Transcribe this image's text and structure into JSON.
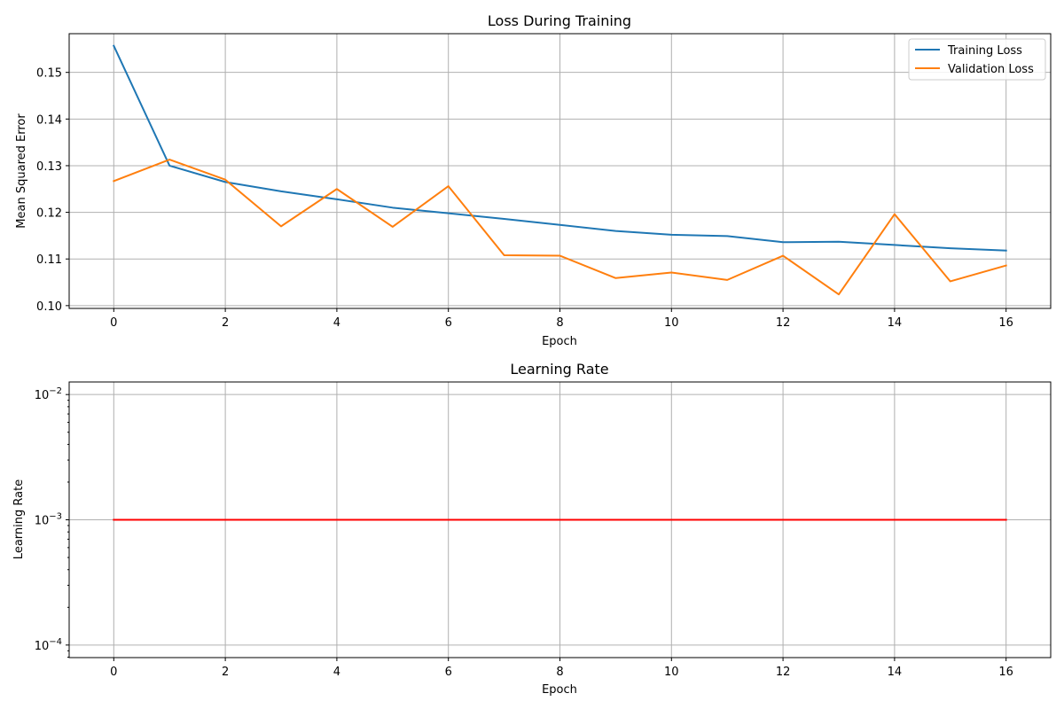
{
  "chart_data": [
    {
      "type": "line",
      "title": "Loss During Training",
      "xlabel": "Epoch",
      "ylabel": "Mean Squared Error",
      "xlim": [
        -0.8,
        16.8
      ],
      "ylim": [
        0.0994,
        0.1583
      ],
      "xticks": [
        0,
        2,
        4,
        6,
        8,
        10,
        12,
        14,
        16
      ],
      "yticks": [
        0.1,
        0.11,
        0.12,
        0.13,
        0.14,
        0.15
      ],
      "ytick_labels": [
        "0.10",
        "0.11",
        "0.12",
        "0.13",
        "0.14",
        "0.15"
      ],
      "grid": true,
      "legend": "top-right",
      "x": [
        0,
        1,
        2,
        3,
        4,
        5,
        6,
        7,
        8,
        9,
        10,
        11,
        12,
        13,
        14,
        15,
        16
      ],
      "series": [
        {
          "name": "Training Loss",
          "color": "#1f77b4",
          "values": [
            0.1557,
            0.13,
            0.1265,
            0.1245,
            0.1228,
            0.121,
            0.1198,
            0.1186,
            0.1173,
            0.116,
            0.1152,
            0.1149,
            0.1136,
            0.1137,
            0.113,
            0.1123,
            0.1118
          ]
        },
        {
          "name": "Validation Loss",
          "color": "#ff7f0e",
          "values": [
            0.1267,
            0.1313,
            0.127,
            0.117,
            0.125,
            0.1169,
            0.1256,
            0.1108,
            0.1107,
            0.1059,
            0.1071,
            0.1055,
            0.1107,
            0.1024,
            0.1196,
            0.1052,
            0.1086
          ]
        }
      ]
    },
    {
      "type": "line",
      "title": "Learning Rate",
      "xlabel": "Epoch",
      "ylabel": "Learning Rate",
      "yscale": "log",
      "xlim": [
        -0.8,
        16.8
      ],
      "ylim": [
        7.94e-05,
        0.0126
      ],
      "xticks": [
        0,
        2,
        4,
        6,
        8,
        10,
        12,
        14,
        16
      ],
      "yticks": [
        0.0001,
        0.001,
        0.01
      ],
      "ytick_labels": [
        {
          "base": "10",
          "exp": "−4"
        },
        {
          "base": "10",
          "exp": "−3"
        },
        {
          "base": "10",
          "exp": "−2"
        }
      ],
      "grid": true,
      "x": [
        0,
        1,
        2,
        3,
        4,
        5,
        6,
        7,
        8,
        9,
        10,
        11,
        12,
        13,
        14,
        15,
        16
      ],
      "series": [
        {
          "color": "#ff0000",
          "values": [
            0.001,
            0.001,
            0.001,
            0.001,
            0.001,
            0.001,
            0.001,
            0.001,
            0.001,
            0.001,
            0.001,
            0.001,
            0.001,
            0.001,
            0.001,
            0.001,
            0.001
          ]
        }
      ]
    }
  ]
}
